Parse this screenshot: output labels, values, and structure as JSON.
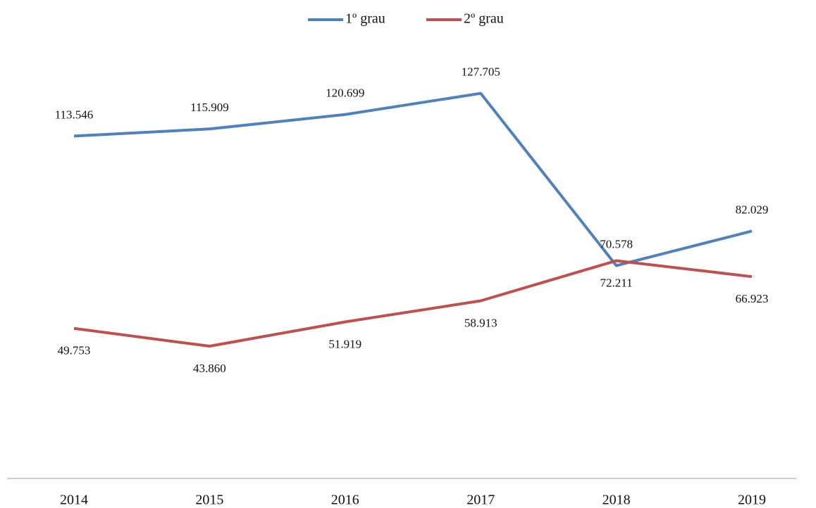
{
  "chart_data": {
    "type": "line",
    "categories": [
      "2014",
      "2015",
      "2016",
      "2017",
      "2018",
      "2019"
    ],
    "series": [
      {
        "name": "1º grau",
        "color": "#4f81bd",
        "values": [
          113546,
          115909,
          120699,
          127705,
          70578,
          82029
        ],
        "value_labels": [
          "113.546",
          "115.909",
          "120.699",
          "127.705",
          "70.578",
          "82.029"
        ]
      },
      {
        "name": "2º grau",
        "color": "#c0504d",
        "values": [
          49753,
          43860,
          51919,
          58913,
          72211,
          66923
        ],
        "value_labels": [
          "49.753",
          "43.860",
          "51.919",
          "58.913",
          "72.211",
          "66.923"
        ]
      }
    ],
    "ylim": [
      0,
      140000
    ],
    "legend": "top"
  }
}
